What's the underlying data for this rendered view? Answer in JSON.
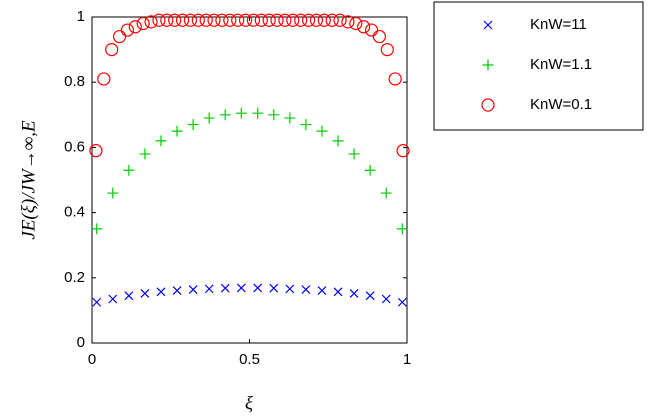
{
  "chart_data": {
    "type": "scatter",
    "xlabel": "ξ",
    "ylabel": "JE(ξ)/JW→∞,E",
    "xlim": [
      0,
      1
    ],
    "ylim": [
      0,
      1
    ],
    "xticks": [
      0,
      0.5,
      1
    ],
    "yticks": [
      0,
      0.2,
      0.4,
      0.6,
      0.8,
      1
    ],
    "legend": "outside-right-top",
    "series": [
      {
        "name": "KnW=11",
        "color": "#0000ff",
        "marker": "x",
        "x": [
          0.015,
          0.066,
          0.117,
          0.168,
          0.219,
          0.27,
          0.321,
          0.372,
          0.423,
          0.474,
          0.526,
          0.577,
          0.628,
          0.679,
          0.73,
          0.781,
          0.832,
          0.883,
          0.934,
          0.985
        ],
        "values": [
          0.125,
          0.135,
          0.145,
          0.152,
          0.157,
          0.161,
          0.164,
          0.166,
          0.168,
          0.169,
          0.169,
          0.168,
          0.166,
          0.164,
          0.161,
          0.157,
          0.152,
          0.145,
          0.135,
          0.125
        ]
      },
      {
        "name": "KnW=1.1",
        "color": "#00cc00",
        "marker": "+",
        "x": [
          0.015,
          0.066,
          0.117,
          0.168,
          0.219,
          0.27,
          0.321,
          0.372,
          0.423,
          0.474,
          0.526,
          0.577,
          0.628,
          0.679,
          0.73,
          0.781,
          0.832,
          0.883,
          0.934,
          0.985
        ],
        "values": [
          0.35,
          0.46,
          0.53,
          0.58,
          0.62,
          0.65,
          0.67,
          0.69,
          0.7,
          0.705,
          0.705,
          0.7,
          0.69,
          0.67,
          0.65,
          0.62,
          0.58,
          0.53,
          0.46,
          0.35
        ]
      },
      {
        "name": "KnW=0.1",
        "color": "#ff0000",
        "marker": "o",
        "x": [
          0.0125,
          0.0375,
          0.0625,
          0.0875,
          0.1125,
          0.1375,
          0.1625,
          0.1875,
          0.2125,
          0.2375,
          0.2625,
          0.2875,
          0.3125,
          0.3375,
          0.3625,
          0.3875,
          0.4125,
          0.4375,
          0.4625,
          0.4875,
          0.5125,
          0.5375,
          0.5625,
          0.5875,
          0.6125,
          0.6375,
          0.6625,
          0.6875,
          0.7125,
          0.7375,
          0.7625,
          0.7875,
          0.8125,
          0.8375,
          0.8625,
          0.8875,
          0.9125,
          0.9375,
          0.9625,
          0.9875
        ],
        "values": [
          0.59,
          0.81,
          0.9,
          0.94,
          0.96,
          0.97,
          0.98,
          0.985,
          0.99,
          0.99,
          0.99,
          0.99,
          0.99,
          0.99,
          0.99,
          0.99,
          0.99,
          0.99,
          0.99,
          0.99,
          0.99,
          0.99,
          0.99,
          0.99,
          0.99,
          0.99,
          0.99,
          0.99,
          0.99,
          0.99,
          0.99,
          0.99,
          0.985,
          0.98,
          0.97,
          0.96,
          0.94,
          0.9,
          0.81,
          0.59
        ]
      }
    ]
  }
}
